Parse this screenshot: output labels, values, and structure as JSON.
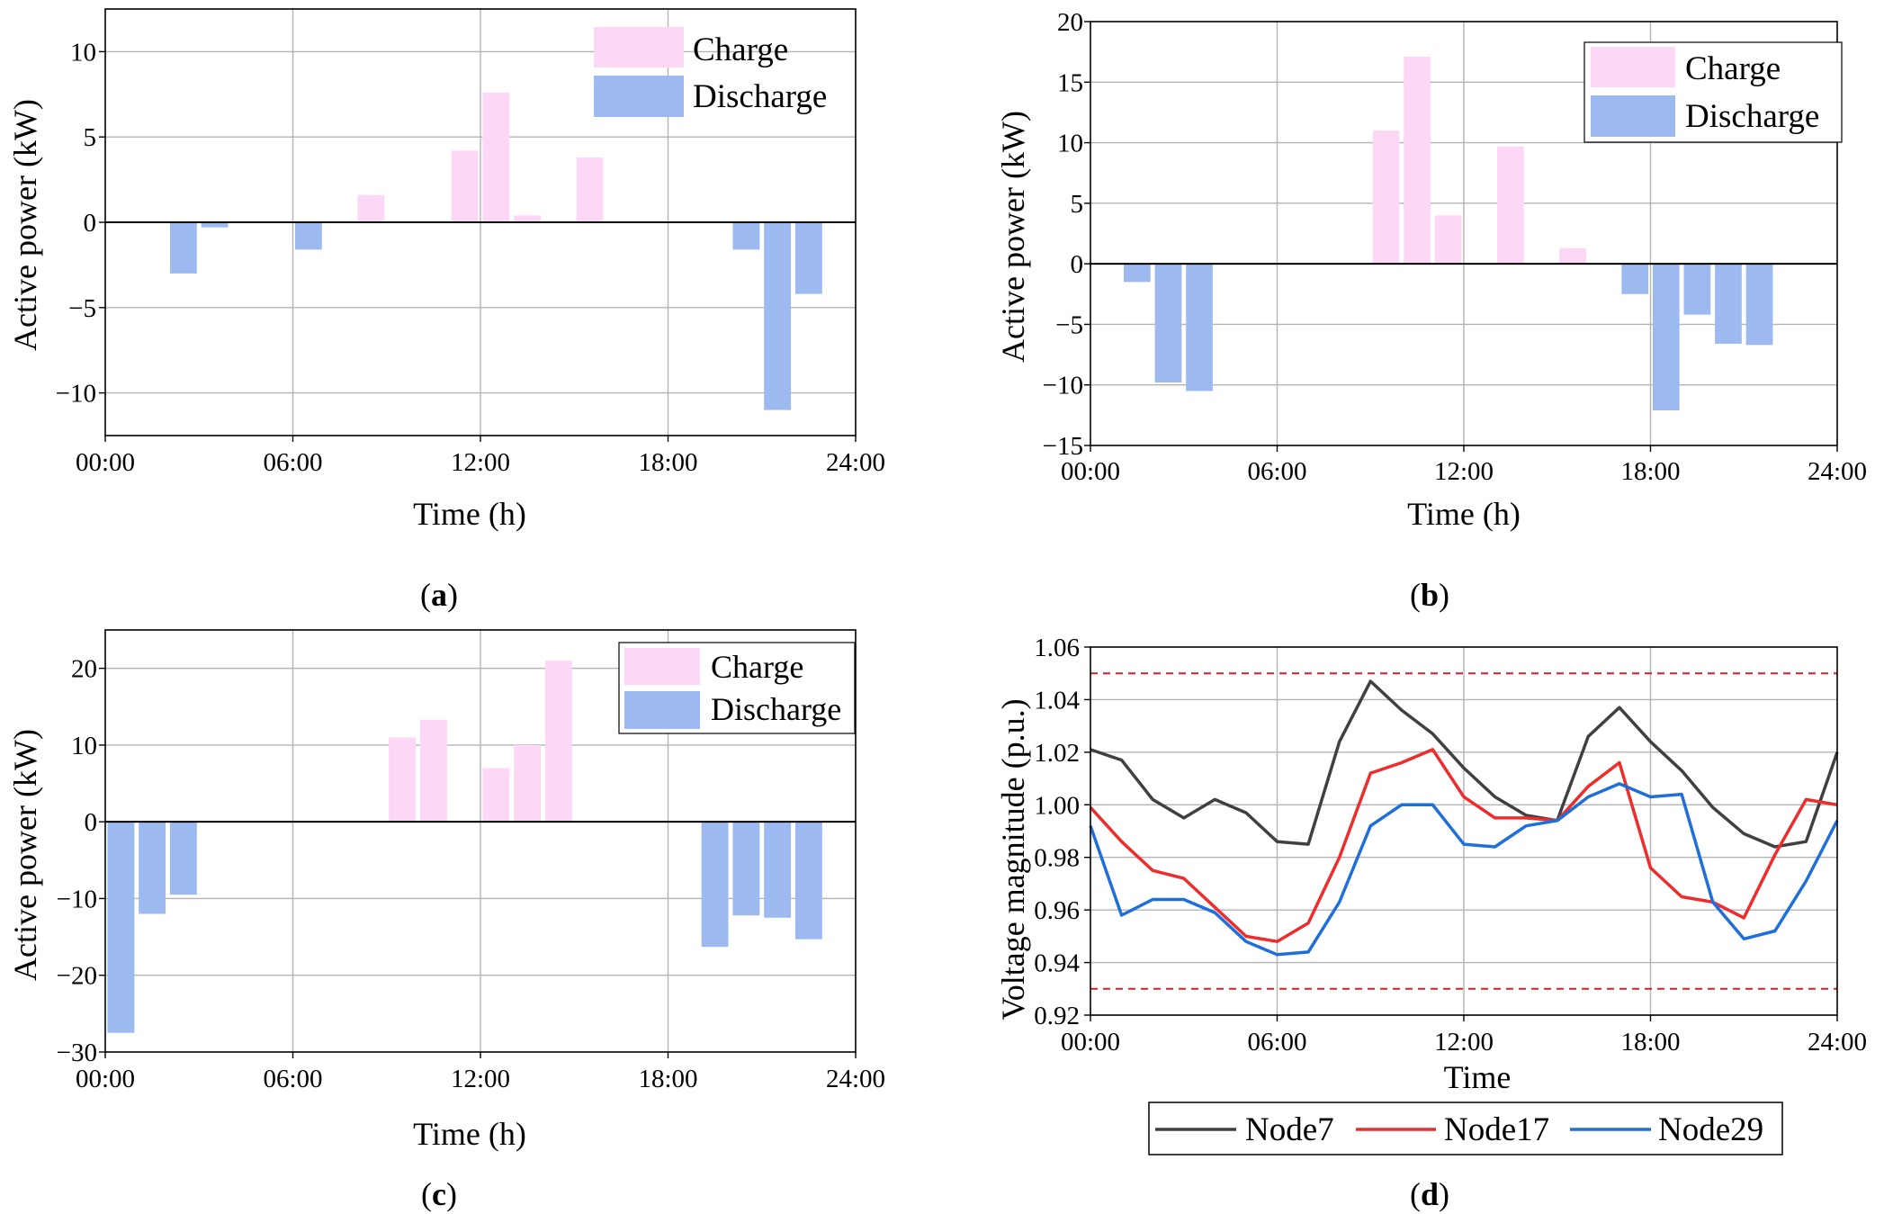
{
  "colors": {
    "charge": "#FDD8F6",
    "discharge": "#9DBAF0",
    "grid": "#b4b4b4",
    "node7": "#404040",
    "node17": "#EE2C2C",
    "node29": "#1E6FD9",
    "limit": "#D0202A"
  },
  "panels": [
    {
      "caption": "(a)",
      "caption_letter": "a",
      "legend": {
        "charge": "Charge",
        "discharge": "Discharge"
      },
      "chart_data": {
        "type": "bar",
        "title": "",
        "xlabel": "Time (h)",
        "ylabel": "Active power (kW)",
        "xlim": [
          0,
          24
        ],
        "ylim": [
          -12.5,
          12.5
        ],
        "xticks": [
          "00:00",
          "06:00",
          "12:00",
          "18:00",
          "24:00"
        ],
        "yticks": [
          10,
          5,
          0,
          -5,
          -10
        ],
        "ytick_labels": [
          "10",
          "5",
          "0",
          "−5",
          "−10"
        ],
        "hours": [
          0,
          1,
          2,
          3,
          4,
          5,
          6,
          7,
          8,
          9,
          10,
          11,
          12,
          13,
          14,
          15,
          16,
          17,
          18,
          19,
          20,
          21,
          22,
          23
        ],
        "values": [
          0,
          0,
          -3.0,
          -0.3,
          0,
          0,
          -1.6,
          0,
          1.6,
          0,
          0,
          4.2,
          7.6,
          0.4,
          0,
          3.8,
          0,
          0,
          0,
          0,
          -1.6,
          -11.0,
          -4.2,
          0
        ]
      }
    },
    {
      "caption": "(b)",
      "caption_letter": "b",
      "legend": {
        "charge": "Charge",
        "discharge": "Discharge"
      },
      "chart_data": {
        "type": "bar",
        "title": "",
        "xlabel": "Time (h)",
        "ylabel": "Active power (kW)",
        "xlim": [
          0,
          24
        ],
        "ylim": [
          -15,
          20
        ],
        "xticks": [
          "00:00",
          "06:00",
          "12:00",
          "18:00",
          "24:00"
        ],
        "yticks": [
          20,
          15,
          10,
          5,
          0,
          -5,
          -10,
          -15
        ],
        "ytick_labels": [
          "20",
          "15",
          "10",
          "5",
          "0",
          "−5",
          "−10",
          "−15"
        ],
        "hours": [
          0,
          1,
          2,
          3,
          4,
          5,
          6,
          7,
          8,
          9,
          10,
          11,
          12,
          13,
          14,
          15,
          16,
          17,
          18,
          19,
          20,
          21,
          22,
          23
        ],
        "values": [
          0,
          -1.5,
          -9.8,
          -10.5,
          0,
          0,
          0,
          0,
          0,
          11.0,
          17.1,
          4.0,
          0,
          9.7,
          0,
          1.3,
          0,
          -2.5,
          -12.1,
          -4.2,
          -6.6,
          -6.7,
          0,
          0
        ]
      }
    },
    {
      "caption": "(c)",
      "caption_letter": "c",
      "legend": {
        "charge": "Charge",
        "discharge": "Discharge"
      },
      "chart_data": {
        "type": "bar",
        "title": "",
        "xlabel": "Time (h)",
        "ylabel": "Active power (kW)",
        "xlim": [
          0,
          24
        ],
        "ylim": [
          -30,
          25
        ],
        "xticks": [
          "00:00",
          "06:00",
          "12:00",
          "18:00",
          "24:00"
        ],
        "yticks": [
          20,
          10,
          0,
          -10,
          -20,
          -30
        ],
        "ytick_labels": [
          "20",
          "10",
          "0",
          "−10",
          "−20",
          "−30"
        ],
        "hours": [
          0,
          1,
          2,
          3,
          4,
          5,
          6,
          7,
          8,
          9,
          10,
          11,
          12,
          13,
          14,
          15,
          16,
          17,
          18,
          19,
          20,
          21,
          22,
          23
        ],
        "values": [
          -27.5,
          -12.0,
          -9.5,
          0,
          0,
          0,
          0,
          0,
          0,
          11.0,
          13.3,
          0,
          7.0,
          10.0,
          21.0,
          0,
          0,
          0,
          0,
          -16.3,
          -12.2,
          -12.5,
          -15.3,
          0
        ]
      }
    },
    {
      "caption": "(d)",
      "caption_letter": "d",
      "chart_data": {
        "type": "line",
        "title": "",
        "xlabel": "Time",
        "ylabel": "Voltage magnitude (p.u.)",
        "xlim": [
          0,
          24
        ],
        "ylim": [
          0.92,
          1.06
        ],
        "xticks": [
          "00:00",
          "06:00",
          "12:00",
          "18:00",
          "24:00"
        ],
        "yticks": [
          "1.06",
          "1.04",
          "1.02",
          "1.00",
          "0.98",
          "0.96",
          "0.94",
          "0.92"
        ],
        "limits": [
          1.05,
          0.93
        ],
        "x": [
          0,
          1,
          2,
          3,
          4,
          5,
          6,
          7,
          8,
          9,
          10,
          11,
          12,
          13,
          14,
          15,
          16,
          17,
          18,
          19,
          20,
          21,
          22,
          23,
          24
        ],
        "series": [
          {
            "name": "Node7",
            "values": [
              1.021,
              1.017,
              1.002,
              0.995,
              1.002,
              0.997,
              0.986,
              0.985,
              1.024,
              1.047,
              1.036,
              1.027,
              1.014,
              1.003,
              0.996,
              0.994,
              1.026,
              1.037,
              1.024,
              1.013,
              0.999,
              0.989,
              0.984,
              0.986,
              1.02
            ]
          },
          {
            "name": "Node17",
            "values": [
              0.999,
              0.986,
              0.975,
              0.972,
              0.961,
              0.95,
              0.948,
              0.955,
              0.98,
              1.012,
              1.016,
              1.021,
              1.003,
              0.995,
              0.995,
              0.994,
              1.007,
              1.016,
              0.976,
              0.965,
              0.963,
              0.957,
              0.981,
              1.002,
              1.0
            ]
          },
          {
            "name": "Node29",
            "values": [
              0.992,
              0.958,
              0.964,
              0.964,
              0.959,
              0.948,
              0.943,
              0.944,
              0.963,
              0.992,
              1.0,
              1.0,
              0.985,
              0.984,
              0.992,
              0.994,
              1.003,
              1.008,
              1.003,
              1.004,
              0.963,
              0.949,
              0.952,
              0.971,
              0.994
            ]
          }
        ]
      }
    }
  ]
}
